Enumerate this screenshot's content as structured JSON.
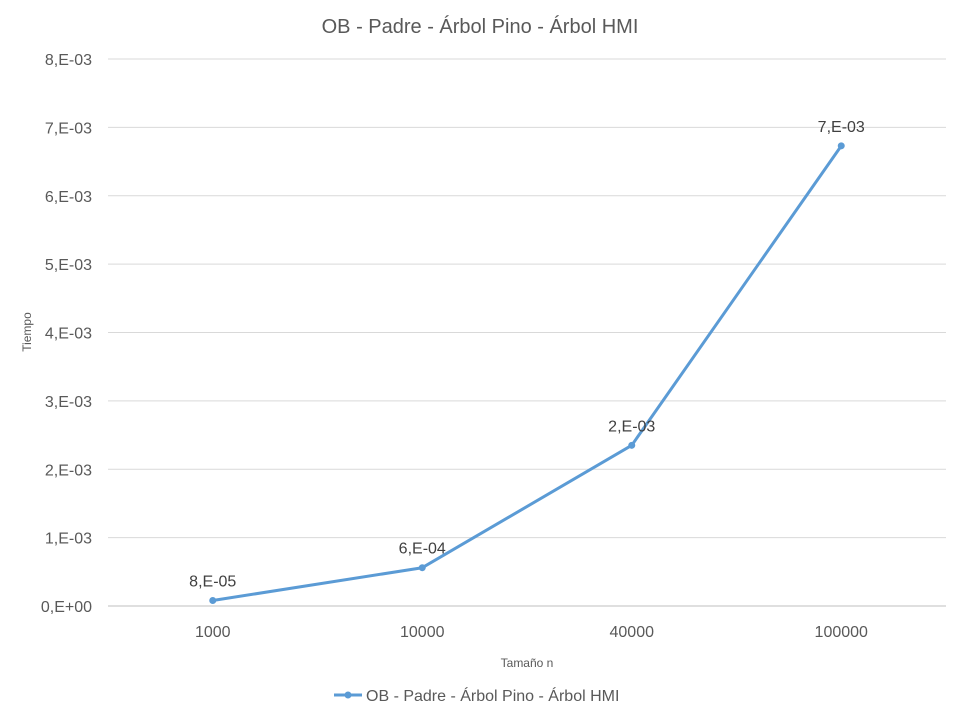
{
  "chart_data": {
    "type": "line",
    "title": "OB - Padre - Árbol Pino - Árbol HMI",
    "xlabel": "Tamaño n",
    "ylabel": "Tiempo",
    "categories": [
      "1000",
      "10000",
      "40000",
      "100000"
    ],
    "series": [
      {
        "name": "OB - Padre - Árbol Pino - Árbol HMI",
        "values": [
          8e-05,
          0.00056,
          0.00235,
          0.00673
        ],
        "data_labels": [
          "8,E-05",
          "6,E-04",
          "2,E-03",
          "7,E-03"
        ],
        "color": "#5b9bd5"
      }
    ],
    "ylim": [
      0,
      0.008
    ],
    "yticks": [
      0,
      0.001,
      0.002,
      0.003,
      0.004,
      0.005,
      0.006,
      0.007,
      0.008
    ],
    "ytick_labels": [
      "0,E+00",
      "1,E-03",
      "2,E-03",
      "3,E-03",
      "4,E-03",
      "5,E-03",
      "6,E-03",
      "7,E-03",
      "8,E-03"
    ],
    "grid": true,
    "legend": "bottom"
  },
  "colors": {
    "series": "#5b9bd5",
    "grid": "#d9d9d9",
    "text": "#595959"
  }
}
